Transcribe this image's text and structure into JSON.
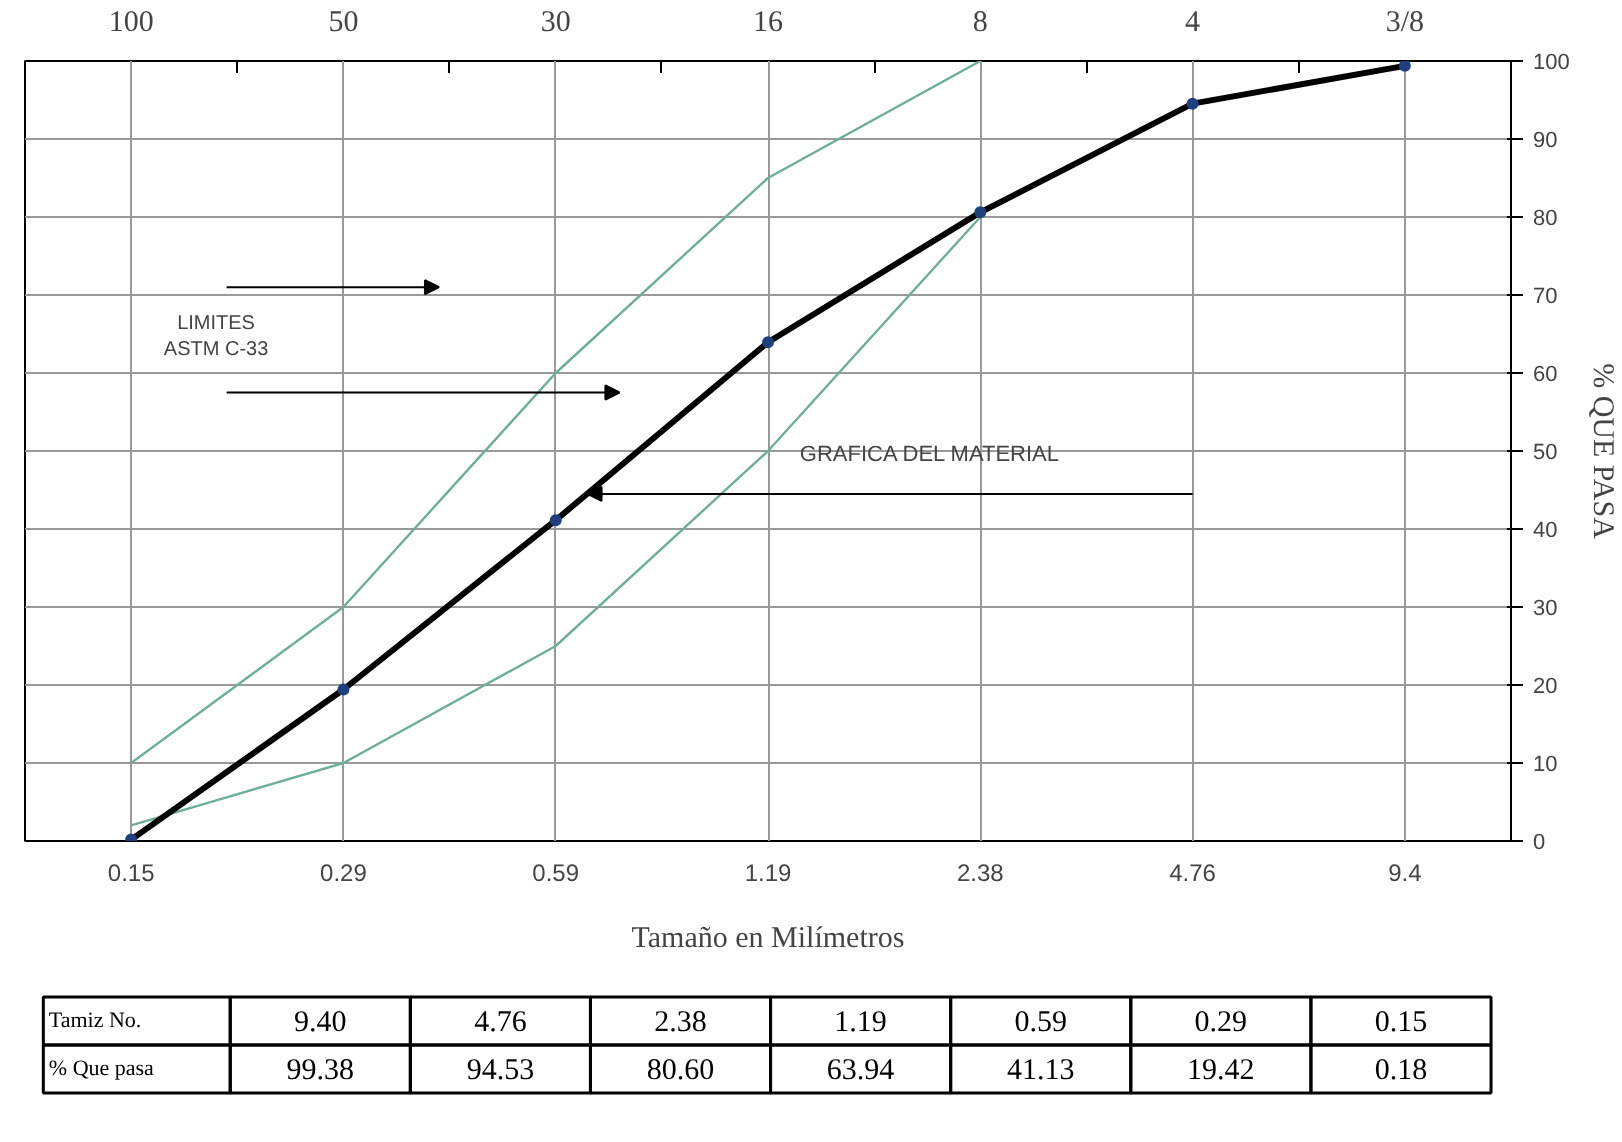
{
  "chart_data": {
    "type": "line",
    "xlabel": "Tamaño en Milímetros",
    "ylabel": "% QUE PASA",
    "categories": [
      "0.15",
      "0.29",
      "0.59",
      "1.19",
      "2.38",
      "4.76",
      "9.4"
    ],
    "ylim": [
      0,
      100
    ],
    "yticks": [
      0,
      10,
      20,
      30,
      40,
      50,
      60,
      70,
      80,
      90,
      100
    ],
    "grid": true,
    "series": [
      {
        "color": "#6fae96",
        "values": [
          10,
          30,
          60,
          85,
          100,
          null,
          null
        ],
        "marker": "none"
      },
      {
        "color": "#6fae96",
        "values": [
          2,
          10,
          25,
          50,
          80,
          null,
          null
        ],
        "marker": "none"
      },
      {
        "color": "#000000",
        "values": [
          0.18,
          19.42,
          41.13,
          63.94,
          80.6,
          94.53,
          99.38
        ],
        "marker": "circle"
      }
    ],
    "annotations": [
      "LIMITES\nASTM C-33",
      "GRAFICA DEL MATERIAL",
      "100",
      "50",
      "30",
      "16",
      "8",
      "4",
      "3/8",
      "Tamiz No.",
      "% Que pasa",
      "9.40",
      "4.76",
      "2.38",
      "1.19",
      "0.59",
      "0.29",
      "0.15",
      "99.38",
      "94.53",
      "80.60",
      "63.94",
      "41.13",
      "19.42",
      "0.18"
    ]
  }
}
